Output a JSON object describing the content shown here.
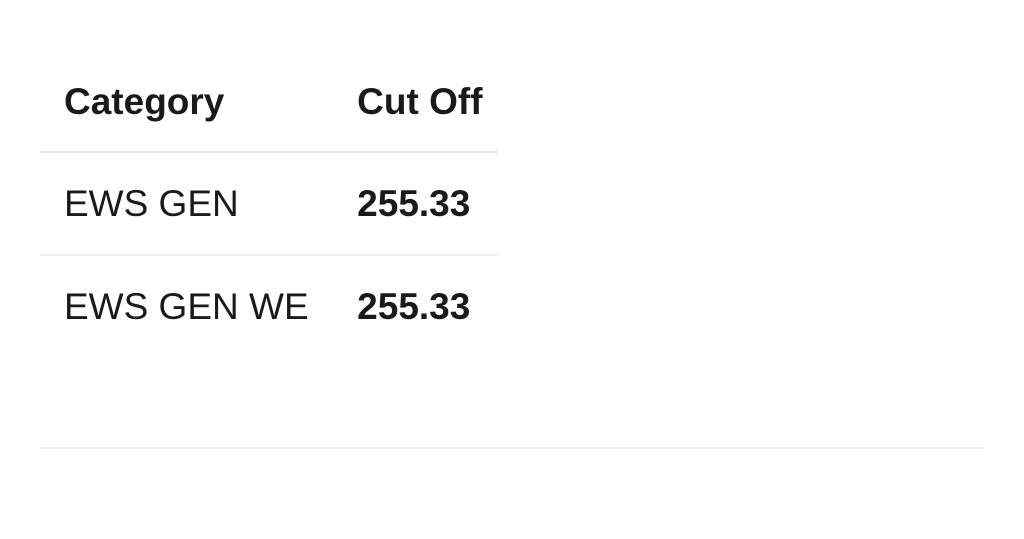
{
  "table": {
    "headers": [
      "Category",
      "Cut Off"
    ],
    "rows": [
      {
        "category": "EWS GEN",
        "cutoff": "255.33"
      },
      {
        "category": "EWS GEN WE",
        "cutoff": "255.33"
      }
    ]
  }
}
